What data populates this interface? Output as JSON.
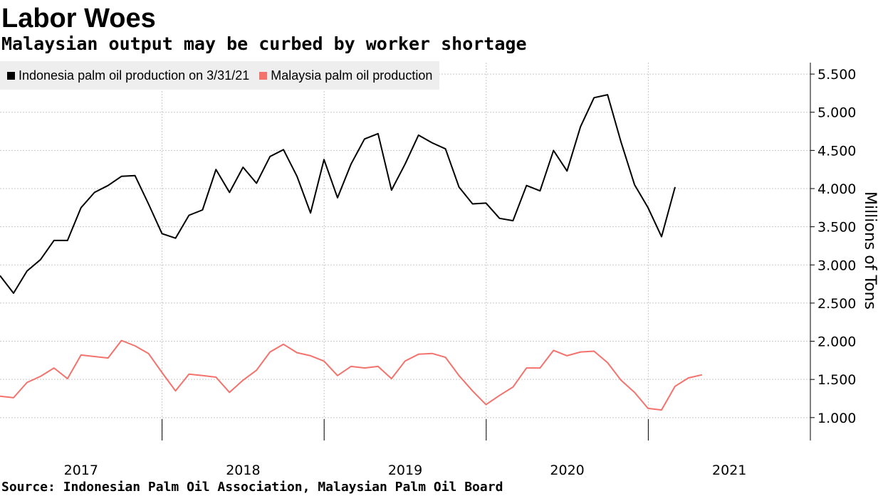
{
  "chart_data": {
    "type": "line",
    "title": "Labor Woes",
    "subtitle": "Malaysian output may be curbed by worker shortage",
    "ylabel": "Millions of Tons",
    "ylim": [
      0.7,
      5.65
    ],
    "yticks": [
      1.0,
      1.5,
      2.0,
      2.5,
      3.0,
      3.5,
      4.0,
      4.5,
      5.0,
      5.5
    ],
    "ytick_labels": [
      "1.000",
      "1.500",
      "2.000",
      "2.500",
      "3.000",
      "3.500",
      "4.000",
      "4.500",
      "5.000",
      "5.500"
    ],
    "xlim": [
      2016.5,
      2021.5
    ],
    "xticks": [
      2017,
      2018,
      2019,
      2020,
      2021
    ],
    "xtick_labels": [
      "2017",
      "2018",
      "2019",
      "2020",
      "2021"
    ],
    "year_boundaries": [
      2017.5,
      2018.5,
      2019.5,
      2020.5
    ],
    "grid": true,
    "legend_position": "top-left",
    "source": "Source: Indonesian Palm Oil Association, Malaysian Palm Oil Board",
    "series": [
      {
        "name": "Indonesia palm oil production on 3/31/21",
        "color": "#000000",
        "start": 2016.5,
        "step": 0.0833,
        "values": [
          2.86,
          2.63,
          2.92,
          3.07,
          3.32,
          3.32,
          3.75,
          3.95,
          4.04,
          4.16,
          4.17,
          3.8,
          3.41,
          3.35,
          3.65,
          3.72,
          4.25,
          3.95,
          4.28,
          4.07,
          4.42,
          4.51,
          4.16,
          3.68,
          4.38,
          3.88,
          4.32,
          4.65,
          4.72,
          3.98,
          4.32,
          4.7,
          4.6,
          4.52,
          4.02,
          3.8,
          3.81,
          3.61,
          3.58,
          4.04,
          3.97,
          4.5,
          4.23,
          4.81,
          5.19,
          5.23,
          4.61,
          4.05,
          3.75,
          3.37,
          4.02
        ]
      },
      {
        "name": "Malaysia palm oil production",
        "color": "#f4726c",
        "start": 2016.5,
        "step": 0.0833,
        "values": [
          1.28,
          1.26,
          1.46,
          1.54,
          1.65,
          1.51,
          1.82,
          1.8,
          1.78,
          2.01,
          1.94,
          1.84,
          1.59,
          1.35,
          1.57,
          1.55,
          1.53,
          1.33,
          1.49,
          1.62,
          1.86,
          1.96,
          1.85,
          1.81,
          1.74,
          1.55,
          1.67,
          1.65,
          1.67,
          1.51,
          1.74,
          1.83,
          1.84,
          1.79,
          1.55,
          1.35,
          1.17,
          1.29,
          1.4,
          1.65,
          1.65,
          1.88,
          1.81,
          1.86,
          1.87,
          1.72,
          1.49,
          1.33,
          1.12,
          1.1,
          1.41,
          1.52,
          1.56
        ]
      }
    ]
  }
}
